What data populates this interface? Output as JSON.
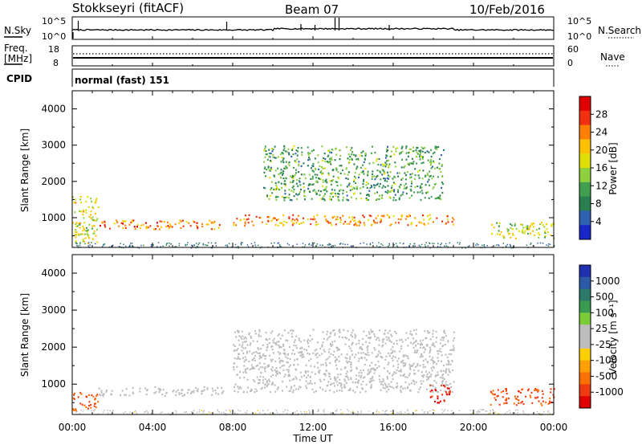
{
  "header": {
    "station": "Stokkseyri (fitACF)",
    "beam": "Beam 07",
    "date": "10/Feb/2016"
  },
  "panels": {
    "nsky": {
      "label": "N.Sky",
      "ticks": [
        "10^5",
        "10^0"
      ]
    },
    "nsearch": {
      "label": "N.Search",
      "ticks": [
        "10^5",
        "10^0"
      ]
    },
    "freq": {
      "label": "Freq.",
      "unit": "[MHz]",
      "ticks": [
        "18",
        "8"
      ]
    },
    "nave": {
      "label": "Nave",
      "ticks": [
        "60",
        "0"
      ]
    },
    "cpid": {
      "label": "CPID",
      "value": "normal (fast) 151"
    }
  },
  "colorbars": {
    "power": {
      "label": "Power [dB]",
      "ticks": [
        "28",
        "24",
        "20",
        "16",
        "12",
        "8",
        "4"
      ],
      "colors": [
        "#e00000",
        "#f03010",
        "#ff8000",
        "#ffc000",
        "#e0e000",
        "#8fd040",
        "#40a050",
        "#2a7f50",
        "#3060b0",
        "#1828c8"
      ]
    },
    "velocity": {
      "label": "Velocity [m s⁻¹]",
      "ticks": [
        "1000",
        "500",
        "100",
        "25",
        "-25",
        "-100",
        "-500",
        "-1000"
      ],
      "colors": [
        "#2030b0",
        "#2a5aa8",
        "#2e7a6a",
        "#3a9a50",
        "#7ccc3a",
        "#bdbdbd",
        "#bdbdbd",
        "#ffd000",
        "#ffa000",
        "#ff7000",
        "#f03a10",
        "#e00000"
      ]
    }
  },
  "axes": {
    "xlabel": "Time UT",
    "xticks": [
      "00:00",
      "04:00",
      "08:00",
      "12:00",
      "16:00",
      "20:00",
      "00:00"
    ],
    "ylabel": "Slant Range [km]",
    "yticks": [
      "1000",
      "2000",
      "3000",
      "4000"
    ]
  },
  "chart_data": [
    {
      "type": "heatmap",
      "parameter": "Power",
      "unit": "dB",
      "x_range": [
        "00:00",
        "24:00"
      ],
      "ylim": [
        180,
        4500
      ],
      "regions": [
        {
          "t_start": 0.0,
          "t_end": 1.3,
          "r_min": 300,
          "r_max": 1600,
          "value": 18
        },
        {
          "t_start": 1.3,
          "t_end": 7.5,
          "r_min": 700,
          "r_max": 950,
          "value": 26
        },
        {
          "t_start": 8.0,
          "t_end": 19.0,
          "r_min": 800,
          "r_max": 1100,
          "value": 24
        },
        {
          "t_start": 9.5,
          "t_end": 18.5,
          "r_min": 1500,
          "r_max": 3000,
          "value": 12
        },
        {
          "t_start": 20.8,
          "t_end": 24.0,
          "r_min": 450,
          "r_max": 900,
          "value": 18
        }
      ]
    },
    {
      "type": "heatmap",
      "parameter": "Velocity",
      "unit": "m s⁻¹",
      "x_range": [
        "00:00",
        "24:00"
      ],
      "ylim": [
        180,
        4500
      ],
      "regions": [
        {
          "t_start": 0.0,
          "t_end": 1.3,
          "r_min": 300,
          "r_max": 800,
          "value": -300
        },
        {
          "t_start": 1.3,
          "t_end": 7.5,
          "r_min": 700,
          "r_max": 950,
          "value": 0
        },
        {
          "t_start": 8.0,
          "t_end": 19.0,
          "r_min": 800,
          "r_max": 2500,
          "value": 0
        },
        {
          "t_start": 17.8,
          "t_end": 18.8,
          "r_min": 500,
          "r_max": 1000,
          "value": -500
        },
        {
          "t_start": 20.8,
          "t_end": 24.0,
          "r_min": 450,
          "r_max": 900,
          "value": -300
        }
      ]
    }
  ]
}
